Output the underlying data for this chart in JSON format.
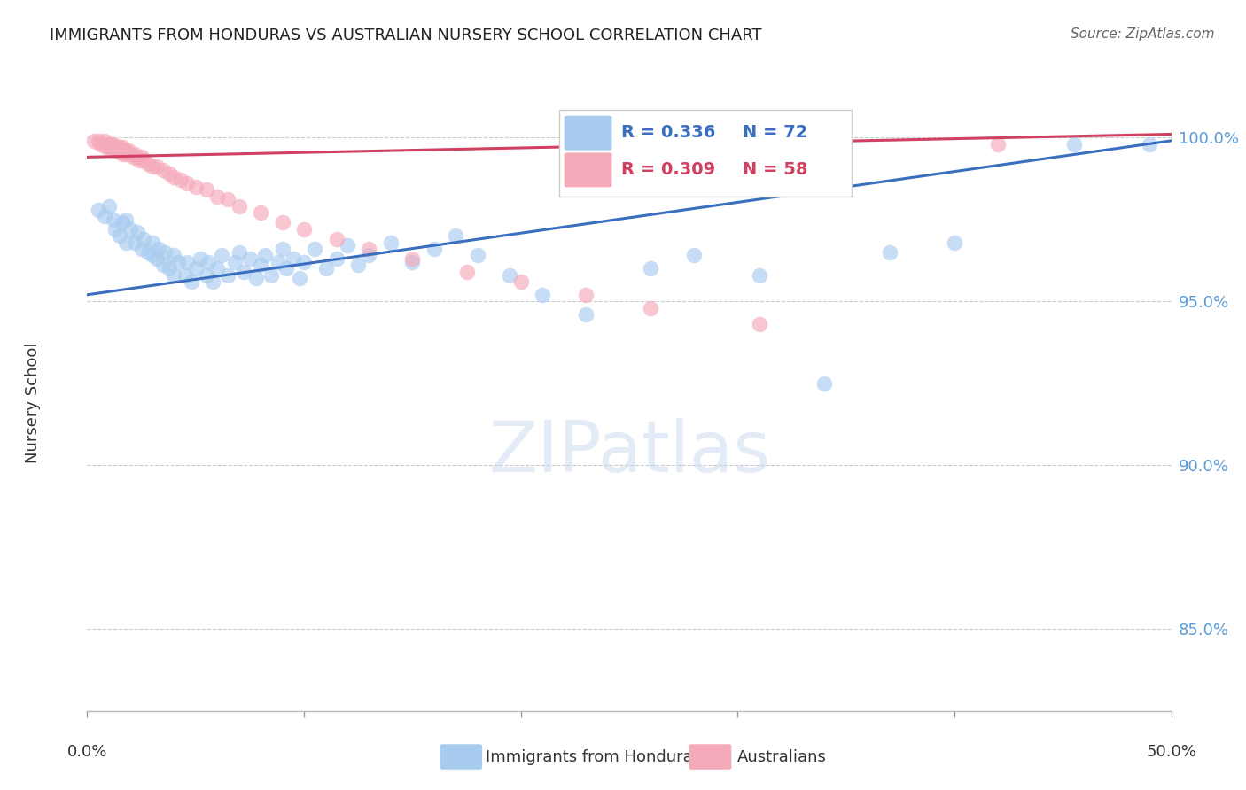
{
  "title": "IMMIGRANTS FROM HONDURAS VS AUSTRALIAN NURSERY SCHOOL CORRELATION CHART",
  "source": "Source: ZipAtlas.com",
  "ylabel": "Nursery School",
  "ytick_labels": [
    "85.0%",
    "90.0%",
    "95.0%",
    "100.0%"
  ],
  "ytick_values": [
    0.85,
    0.9,
    0.95,
    1.0
  ],
  "xlim": [
    0.0,
    0.5
  ],
  "ylim": [
    0.825,
    1.013
  ],
  "legend_blue_R": "R = 0.336",
  "legend_blue_N": "N = 72",
  "legend_pink_R": "R = 0.309",
  "legend_pink_N": "N = 58",
  "blue_color": "#A8CCF0",
  "pink_color": "#F5AABA",
  "blue_line_color": "#3A6EBF",
  "pink_line_color": "#D04060",
  "blue_scatter_x": [
    0.005,
    0.008,
    0.01,
    0.012,
    0.013,
    0.015,
    0.016,
    0.018,
    0.018,
    0.02,
    0.022,
    0.023,
    0.025,
    0.026,
    0.028,
    0.03,
    0.03,
    0.032,
    0.033,
    0.035,
    0.036,
    0.038,
    0.04,
    0.04,
    0.042,
    0.045,
    0.046,
    0.048,
    0.05,
    0.052,
    0.055,
    0.056,
    0.058,
    0.06,
    0.062,
    0.065,
    0.068,
    0.07,
    0.072,
    0.075,
    0.078,
    0.08,
    0.082,
    0.085,
    0.088,
    0.09,
    0.092,
    0.095,
    0.098,
    0.1,
    0.105,
    0.11,
    0.115,
    0.12,
    0.125,
    0.13,
    0.14,
    0.15,
    0.16,
    0.17,
    0.18,
    0.195,
    0.21,
    0.23,
    0.26,
    0.28,
    0.31,
    0.34,
    0.37,
    0.4,
    0.455,
    0.49
  ],
  "blue_scatter_y": [
    0.978,
    0.976,
    0.979,
    0.975,
    0.972,
    0.97,
    0.974,
    0.968,
    0.975,
    0.972,
    0.968,
    0.971,
    0.966,
    0.969,
    0.965,
    0.968,
    0.964,
    0.963,
    0.966,
    0.961,
    0.965,
    0.96,
    0.964,
    0.958,
    0.962,
    0.958,
    0.962,
    0.956,
    0.96,
    0.963,
    0.958,
    0.962,
    0.956,
    0.96,
    0.964,
    0.958,
    0.962,
    0.965,
    0.959,
    0.963,
    0.957,
    0.961,
    0.964,
    0.958,
    0.962,
    0.966,
    0.96,
    0.963,
    0.957,
    0.962,
    0.966,
    0.96,
    0.963,
    0.967,
    0.961,
    0.964,
    0.968,
    0.962,
    0.966,
    0.97,
    0.964,
    0.958,
    0.952,
    0.946,
    0.96,
    0.964,
    0.958,
    0.925,
    0.965,
    0.968,
    0.998,
    0.998
  ],
  "pink_scatter_x": [
    0.003,
    0.005,
    0.006,
    0.007,
    0.008,
    0.008,
    0.009,
    0.009,
    0.01,
    0.01,
    0.011,
    0.011,
    0.012,
    0.012,
    0.013,
    0.013,
    0.014,
    0.014,
    0.015,
    0.015,
    0.016,
    0.016,
    0.017,
    0.018,
    0.018,
    0.019,
    0.02,
    0.021,
    0.022,
    0.023,
    0.024,
    0.025,
    0.026,
    0.028,
    0.03,
    0.032,
    0.035,
    0.038,
    0.04,
    0.043,
    0.046,
    0.05,
    0.055,
    0.06,
    0.065,
    0.07,
    0.08,
    0.09,
    0.1,
    0.115,
    0.13,
    0.15,
    0.175,
    0.2,
    0.23,
    0.26,
    0.31,
    0.42
  ],
  "pink_scatter_y": [
    0.999,
    0.999,
    0.998,
    0.998,
    0.998,
    0.999,
    0.998,
    0.997,
    0.998,
    0.997,
    0.998,
    0.997,
    0.997,
    0.998,
    0.997,
    0.996,
    0.997,
    0.996,
    0.997,
    0.996,
    0.997,
    0.995,
    0.996,
    0.996,
    0.995,
    0.996,
    0.995,
    0.994,
    0.995,
    0.994,
    0.993,
    0.994,
    0.993,
    0.992,
    0.991,
    0.991,
    0.99,
    0.989,
    0.988,
    0.987,
    0.986,
    0.985,
    0.984,
    0.982,
    0.981,
    0.979,
    0.977,
    0.974,
    0.972,
    0.969,
    0.966,
    0.963,
    0.959,
    0.956,
    0.952,
    0.948,
    0.943,
    0.998
  ],
  "blue_trendline_x": [
    0.0,
    0.5
  ],
  "blue_trendline_y": [
    0.952,
    0.999
  ],
  "pink_trendline_x": [
    0.0,
    0.5
  ],
  "pink_trendline_y": [
    0.994,
    1.001
  ]
}
